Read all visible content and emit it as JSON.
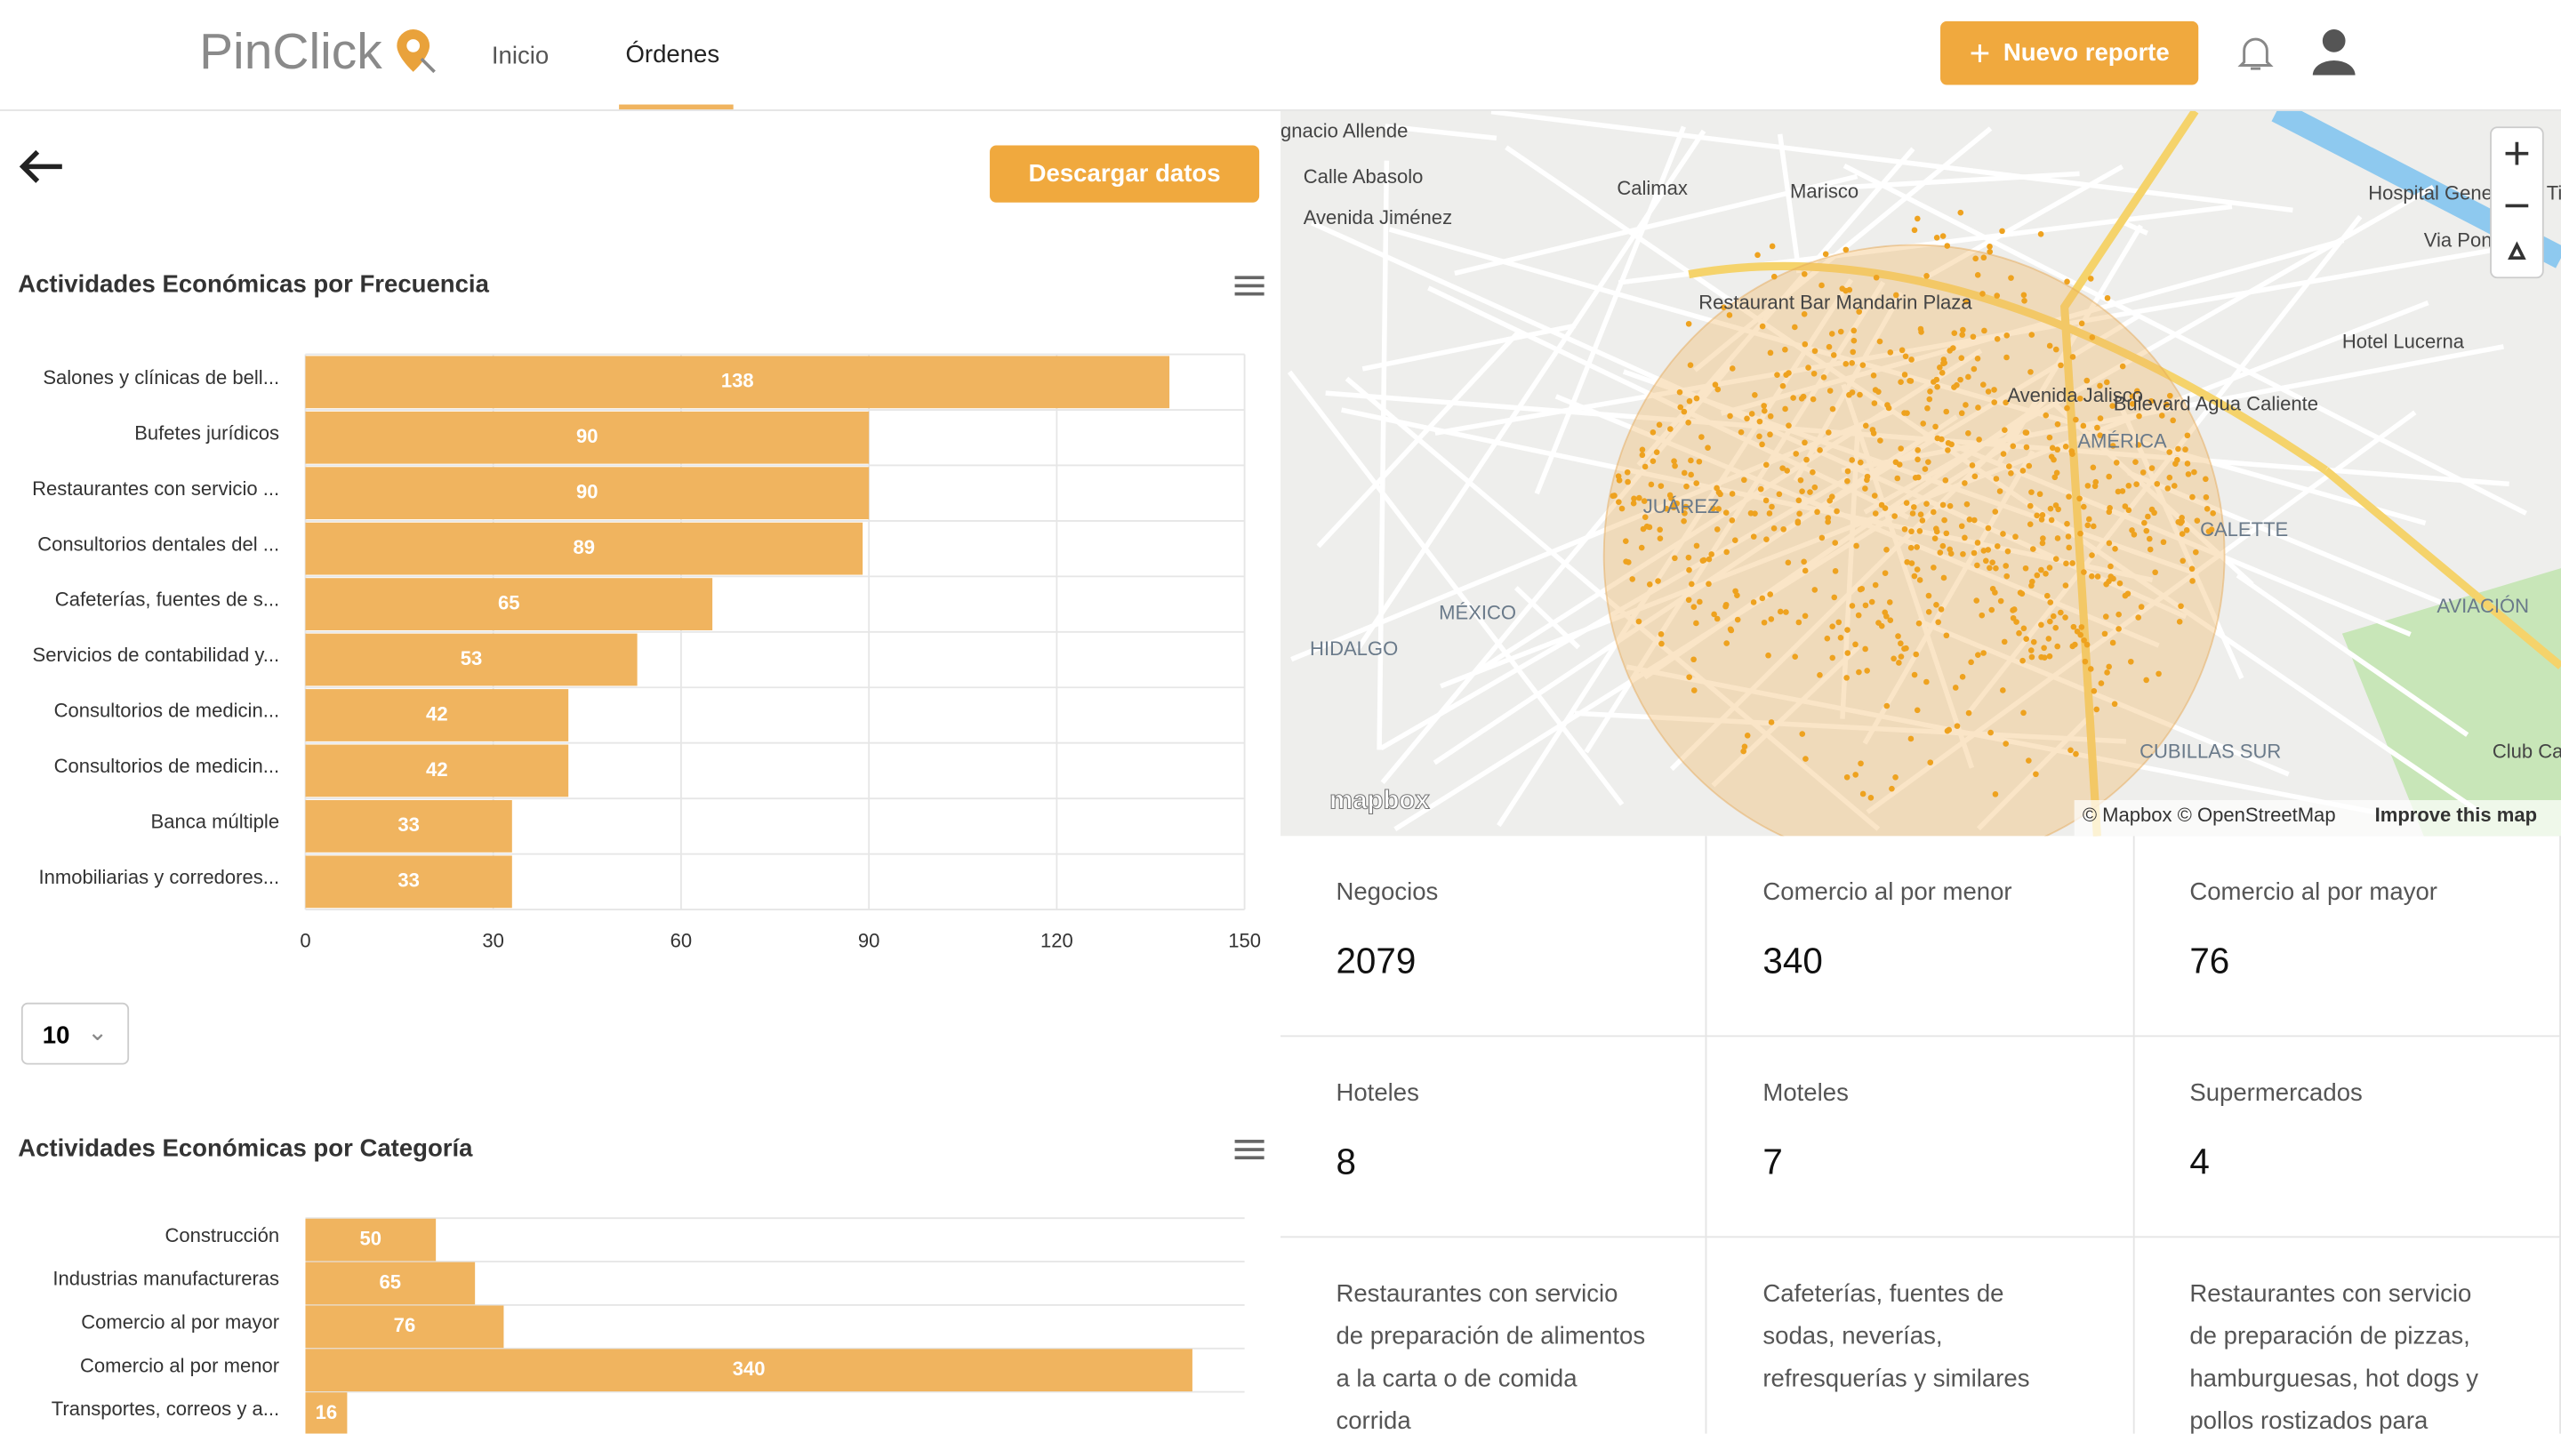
{
  "header": {
    "logo": "PinClick",
    "nav": [
      "Inicio",
      "Órdenes"
    ],
    "new_report": "Nuevo reporte"
  },
  "toolbar": {
    "download": "Descargar datos",
    "page_size": "10"
  },
  "chart_data": [
    {
      "type": "bar",
      "orientation": "horizontal",
      "title": "Actividades Económicas por Frecuencia",
      "color": "#f0b45f",
      "categories": [
        "Salones y clínicas de bell...",
        "Bufetes jurídicos",
        "Restaurantes con servicio ...",
        "Consultorios dentales del ...",
        "Cafeterías, fuentes de s...",
        "Servicios de contabilidad y...",
        "Consultorios de medicin...",
        "Consultorios de medicin...",
        "Banca múltiple",
        "Inmobiliarias y corredores..."
      ],
      "values": [
        138,
        90,
        90,
        89,
        65,
        53,
        42,
        42,
        33,
        33
      ],
      "xlim": [
        0,
        150
      ],
      "xticks": [
        0,
        30,
        60,
        90,
        120,
        150
      ],
      "grid": true
    },
    {
      "type": "bar",
      "orientation": "horizontal",
      "title": "Actividades Económicas por Categoría",
      "color": "#f0b45f",
      "categories": [
        "Construcción",
        "Industrias manufactureras",
        "Comercio al por mayor",
        "Comercio al por menor",
        "Transportes, correos y a..."
      ],
      "values": [
        50,
        65,
        76,
        340,
        16
      ],
      "xlim": [
        0,
        360
      ],
      "grid": true
    }
  ],
  "map": {
    "labels": [
      "gnacio Allende",
      "Calle Abasolo",
      "Avenida Jiménez",
      "Calimax",
      "Marisco",
      "Restaurant Bar Mandarin Plaza",
      "JUÁREZ",
      "MÉXICO",
      "HIDALGO",
      "AMÉRICA",
      "CALETTE",
      "AVIACIÓN",
      "CUBILLAS SUR",
      "Hospital General de Tijuana",
      "Hotel Lucerna",
      "Via Poniente",
      "Bulevard Agua Caliente",
      "Avenida Jalisco",
      "Club Campestre de Tijuana"
    ],
    "attribution": "© Mapbox © OpenStreetMap",
    "improve": "Improve this map",
    "brand": "mapbox"
  },
  "stats": [
    {
      "label": "Negocios",
      "value": "2079"
    },
    {
      "label": "Comercio al por menor",
      "value": "340"
    },
    {
      "label": "Comercio al por mayor",
      "value": "76"
    },
    {
      "label": "Hoteles",
      "value": "8"
    },
    {
      "label": "Moteles",
      "value": "7"
    },
    {
      "label": "Supermercados",
      "value": "4"
    },
    {
      "label": "Restaurantes con servicio de preparación de alimentos a la carta o de comida corrida"
    },
    {
      "label": "Cafeterías, fuentes de sodas, neverías, refresquerías y similares"
    },
    {
      "label": "Restaurantes con servicio de preparación de pizzas, hamburguesas, hot dogs y pollos rostizados para"
    }
  ]
}
